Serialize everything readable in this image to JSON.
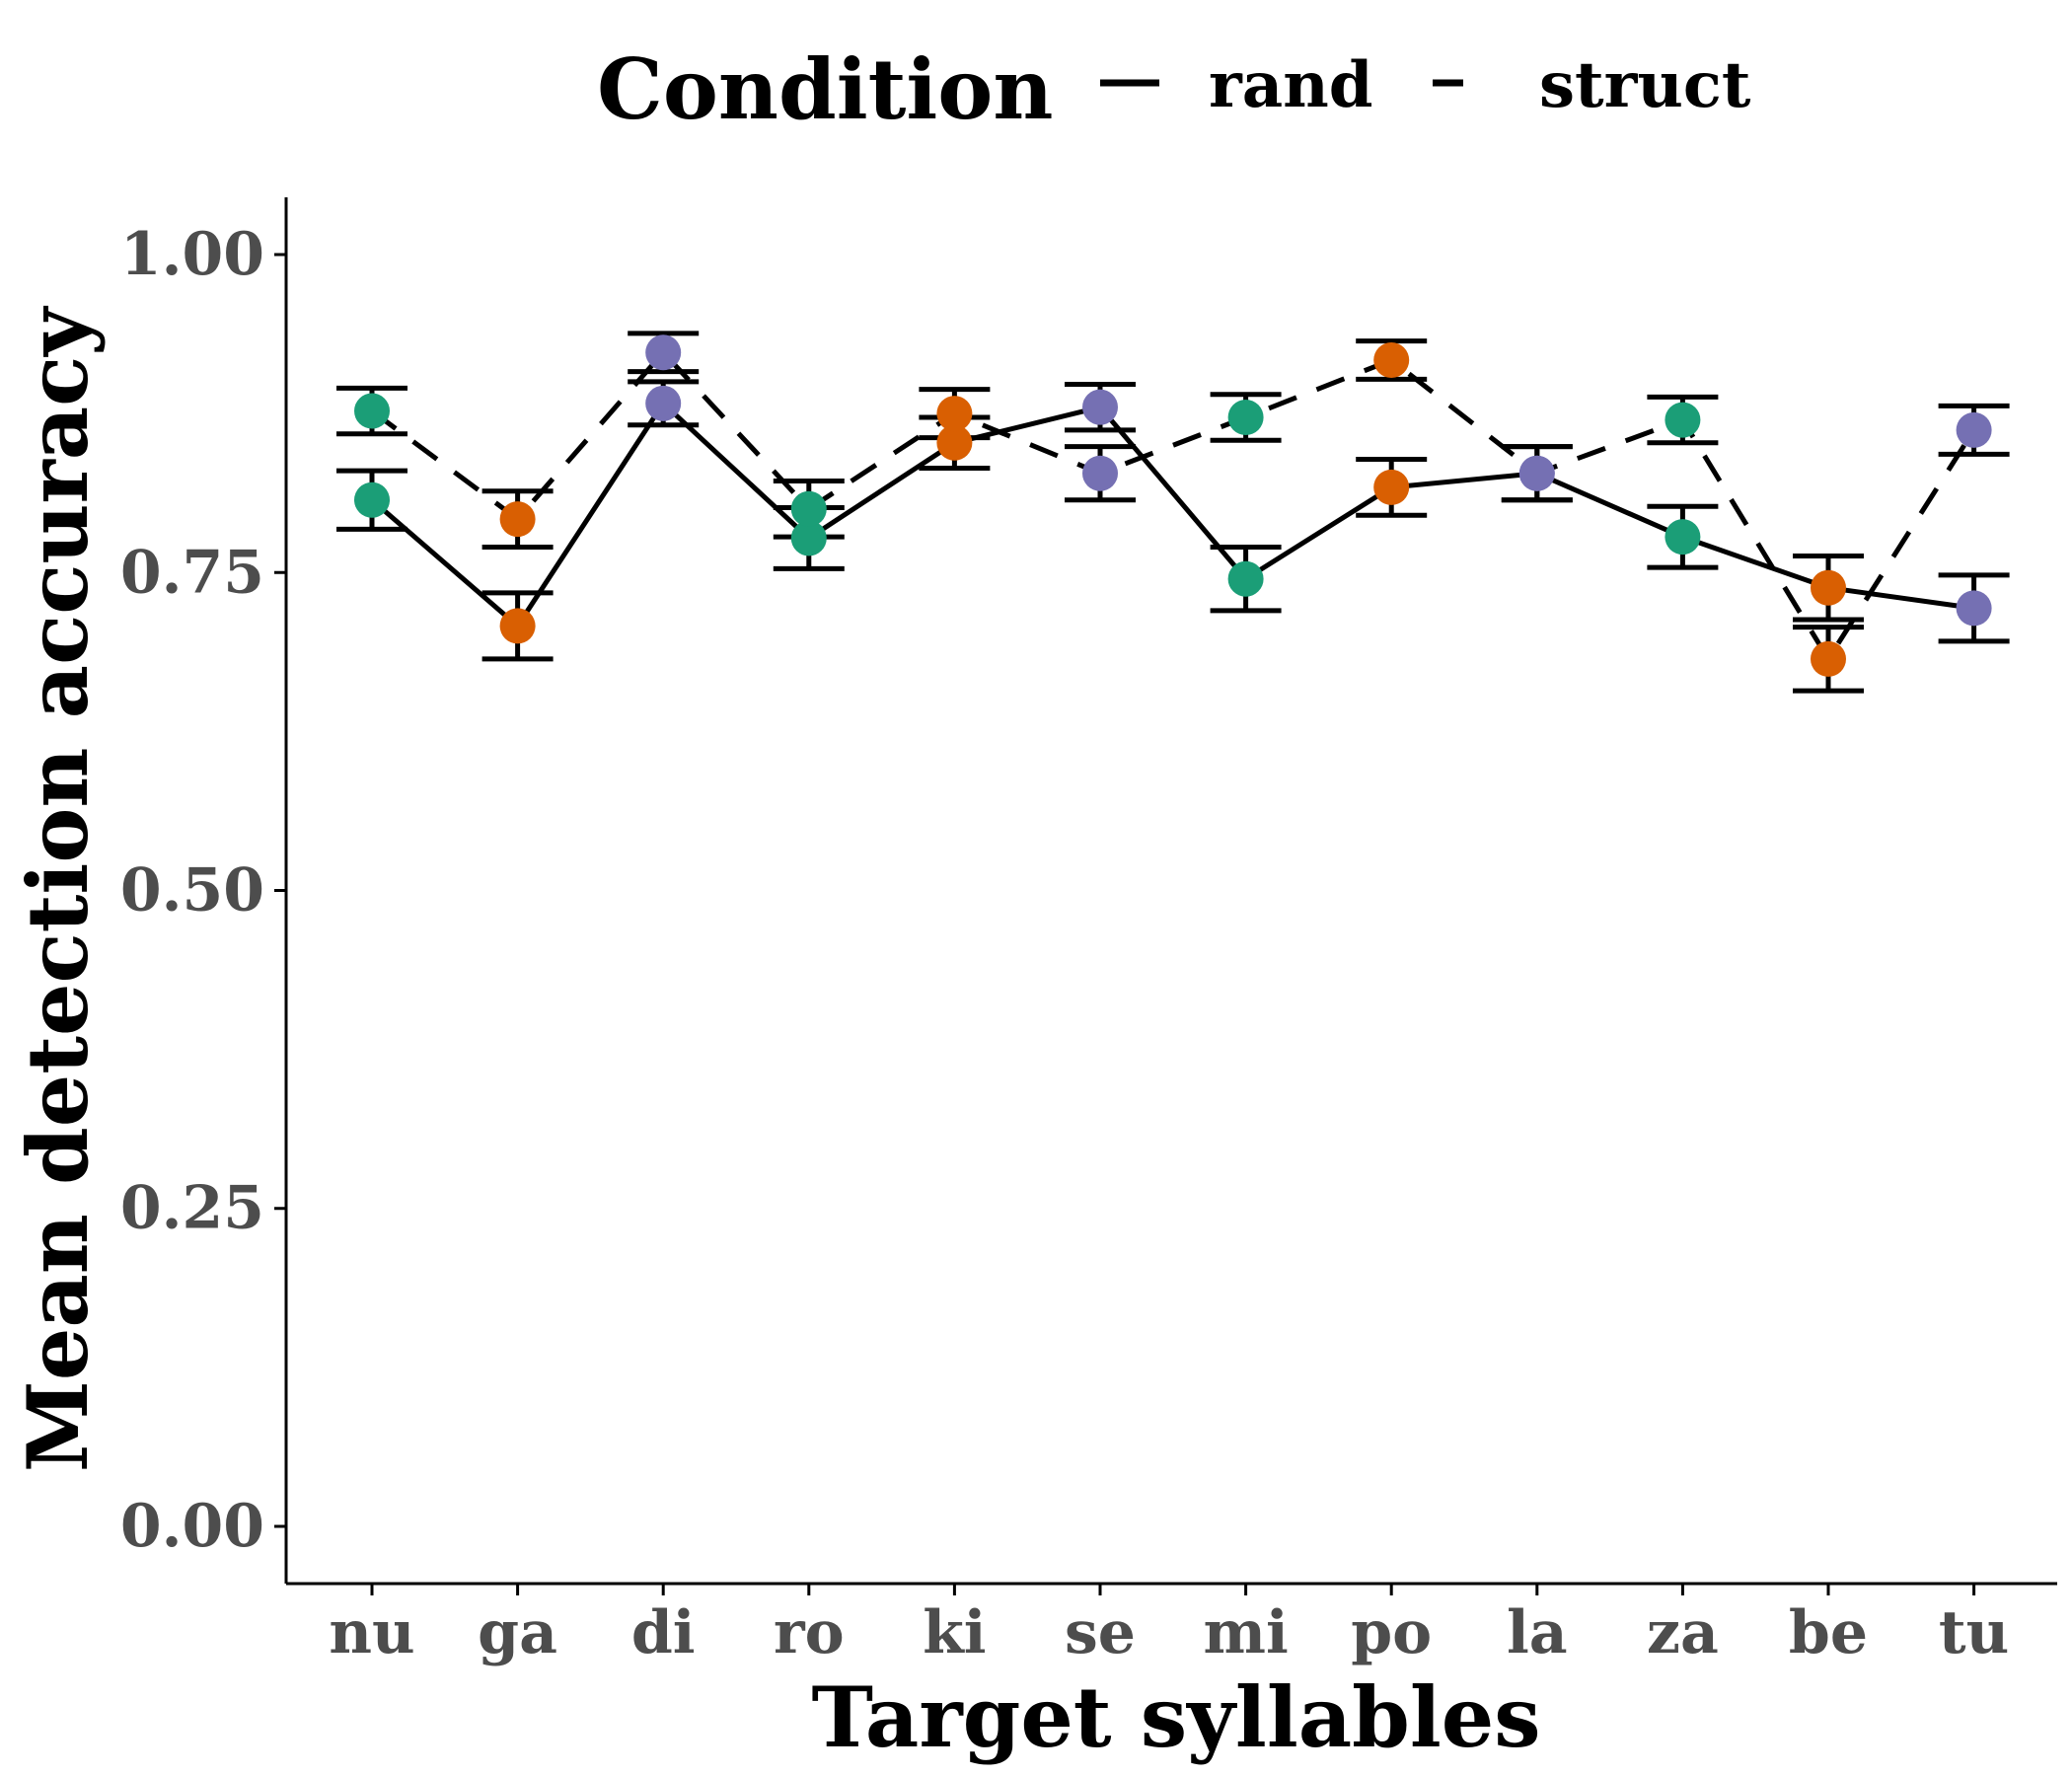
{
  "chart_data": {
    "type": "line",
    "xlabel": "Target syllables",
    "ylabel": "Mean detection accuracy",
    "ylim": [
      -0.045,
      1.045
    ],
    "yticks": [
      "0.00",
      "0.25",
      "0.50",
      "0.75",
      "1.00"
    ],
    "categories": [
      "nu",
      "ga",
      "di",
      "ro",
      "ki",
      "se",
      "mi",
      "po",
      "la",
      "za",
      "be",
      "tu"
    ],
    "legend": {
      "title": "Condition",
      "placement": "top",
      "entries": [
        {
          "label": "rand",
          "dash": "solid"
        },
        {
          "label": "struct",
          "dash": "dashed"
        }
      ]
    },
    "group_colors": [
      "#1b9e77",
      "#d95f02",
      "#7570b3"
    ],
    "point_groups": [
      0,
      1,
      2,
      0,
      1,
      2,
      0,
      1,
      2,
      0,
      1,
      2
    ],
    "series": [
      {
        "name": "rand",
        "dash": "solid",
        "values": [
          0.807,
          0.708,
          0.883,
          0.777,
          0.852,
          0.88,
          0.745,
          0.817,
          0.828,
          0.778,
          0.738,
          0.722
        ],
        "error": [
          0.023,
          0.026,
          0.017,
          0.024,
          0.02,
          0.018,
          0.025,
          0.022,
          0.021,
          0.024,
          0.025,
          0.026
        ]
      },
      {
        "name": "struct",
        "dash": "dashed",
        "values": [
          0.877,
          0.792,
          0.923,
          0.8,
          0.875,
          0.828,
          0.872,
          0.917,
          0.828,
          0.87,
          0.682,
          0.862
        ],
        "error": [
          0.018,
          0.022,
          0.015,
          0.022,
          0.019,
          0.021,
          0.018,
          0.015,
          0.021,
          0.018,
          0.025,
          0.019
        ]
      }
    ]
  }
}
